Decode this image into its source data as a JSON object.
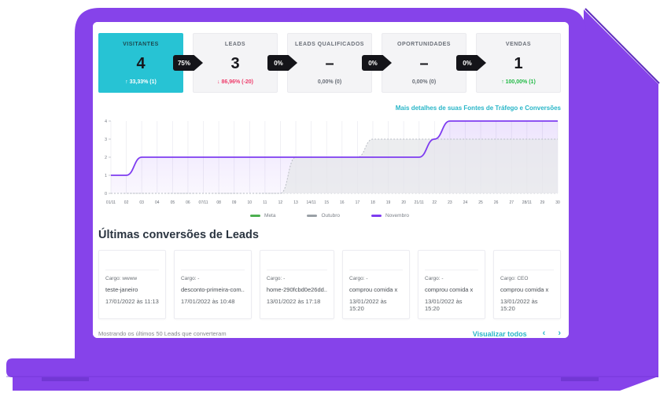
{
  "colors": {
    "laptop_purple": "#8643ea",
    "laptop_edge_dark": "#5e2bbd",
    "accent_teal": "#27c3d4",
    "link_teal": "#29b6c8",
    "arrow_black": "#141419",
    "negative_red": "#ee3c6b",
    "positive_green": "#21ba45",
    "chart_purple": "#7e3cf0",
    "chart_gray": "#b9bdc4",
    "meta_green": "#4caf50"
  },
  "funnel": {
    "cards": [
      {
        "title": "VISITANTES",
        "value": "4",
        "delta": "↑ 33,33% (1)"
      },
      {
        "title": "LEADS",
        "value": "3",
        "delta": "↓ 86,96% (-20)"
      },
      {
        "title": "LEADS QUALIFICADOS",
        "value": "–",
        "delta": "0,00% (0)"
      },
      {
        "title": "OPORTUNIDADES",
        "value": "–",
        "delta": "0,00% (0)"
      },
      {
        "title": "VENDAS",
        "value": "1",
        "delta": "↑ 100,00% (1)"
      }
    ],
    "arrows": [
      "75%",
      "0%",
      "0%",
      "0%"
    ]
  },
  "links": {
    "traffic_details": "Mais detalhes de suas Fontes de Tráfego e Conversões"
  },
  "chart_data": {
    "type": "area",
    "x": [
      "01/11",
      "02",
      "03",
      "04",
      "05",
      "06",
      "07/11",
      "08",
      "09",
      "10",
      "11",
      "12",
      "13",
      "14/11",
      "15",
      "16",
      "17",
      "18",
      "19",
      "20",
      "21/11",
      "22",
      "23",
      "24",
      "25",
      "26",
      "27",
      "28/11",
      "29",
      "30"
    ],
    "series": [
      {
        "name": "Meta",
        "color": "#4caf50",
        "values": []
      },
      {
        "name": "Outubro",
        "color": "#9aa0a6",
        "values": [
          0,
          0,
          0,
          0,
          0,
          0,
          0,
          0,
          0,
          0,
          0,
          0,
          2,
          2,
          2,
          2,
          2,
          3,
          3,
          3,
          3,
          3,
          3,
          3,
          3,
          3,
          3,
          3,
          3,
          3
        ]
      },
      {
        "name": "Novembro",
        "color": "#7e3cf0",
        "values": [
          1,
          1,
          2,
          2,
          2,
          2,
          2,
          2,
          2,
          2,
          2,
          2,
          2,
          2,
          2,
          2,
          2,
          2,
          2,
          2,
          2,
          3,
          4,
          4,
          4,
          4,
          4,
          4,
          4,
          4
        ]
      }
    ],
    "ylim": [
      0,
      4
    ],
    "yticks": [
      0,
      1,
      2,
      3,
      4
    ],
    "grid": true,
    "legend_position": "bottom",
    "title": "",
    "xlabel": "",
    "ylabel": ""
  },
  "leads_section": {
    "title": "Últimas conversões de Leads",
    "cards": [
      {
        "cargo": "Cargo: wwww",
        "name": "teste-janeiro",
        "datetime": "17/01/2022 às 11:13"
      },
      {
        "cargo": "Cargo: -",
        "name": "desconto-primeira-com..",
        "datetime": "17/01/2022 às 10:48"
      },
      {
        "cargo": "Cargo: -",
        "name": "home-290fcbd0e26dd..",
        "datetime": "13/01/2022 às 17:18"
      },
      {
        "cargo": "Cargo: -",
        "name": "comprou comida x",
        "datetime": "13/01/2022 às 15:20"
      },
      {
        "cargo": "Cargo: -",
        "name": "comprou comida x",
        "datetime": "13/01/2022 às 15:20"
      },
      {
        "cargo": "Cargo: CEO",
        "name": "comprou comida x",
        "datetime": "13/01/2022 às 15:20"
      }
    ],
    "footer_note": "Mostrando os últimos 50 Leads que converteram",
    "view_all": "Visualizar todos",
    "prev_icon": "‹",
    "next_icon": "›"
  }
}
